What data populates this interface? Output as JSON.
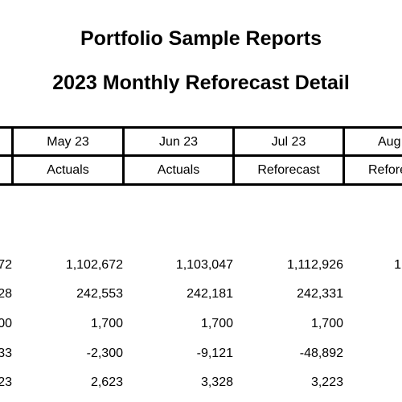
{
  "report": {
    "title": "Portfolio Sample Reports",
    "subtitle": "2023 Monthly Reforecast Detail"
  },
  "columns": [
    {
      "month": "",
      "type": ""
    },
    {
      "month": "May 23",
      "type": "Actuals"
    },
    {
      "month": "Jun 23",
      "type": "Actuals"
    },
    {
      "month": "Jul 23",
      "type": "Reforecast"
    },
    {
      "month": "Aug",
      "type": "Refore"
    }
  ],
  "rows": [
    {
      "cells": [
        "72",
        "1,102,672",
        "1,103,047",
        "1,112,926",
        "1"
      ]
    },
    {
      "cells": [
        "28",
        "242,553",
        "242,181",
        "242,331",
        ""
      ]
    },
    {
      "cells": [
        "00",
        "1,700",
        "1,700",
        "1,700",
        ""
      ]
    },
    {
      "cells": [
        "33",
        "-2,300",
        "-9,121",
        "-48,892",
        ""
      ]
    },
    {
      "cells": [
        "23",
        "2,623",
        "3,328",
        "3,223",
        ""
      ]
    }
  ]
}
